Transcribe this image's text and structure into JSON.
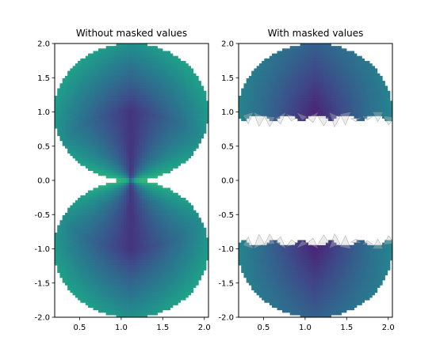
{
  "chart_data": [
    {
      "type": "heatmap",
      "title": "Without masked values",
      "xlabel": "",
      "ylabel": "",
      "xlim": [
        0.2,
        2.05
      ],
      "ylim": [
        -2.0,
        2.0
      ],
      "xticks": [
        "0.5",
        "1.0",
        "1.5",
        "2.0"
      ],
      "xtick_values": [
        0.5,
        1.0,
        1.5,
        2.0
      ],
      "yticks": [
        "2.0",
        "1.5",
        "1.0",
        "0.5",
        "0.0",
        "-0.5",
        "-1.0",
        "-1.5",
        "-2.0"
      ],
      "ytick_values": [
        2.0,
        1.5,
        1.0,
        0.5,
        0.0,
        -0.5,
        -1.0,
        -1.5,
        -2.0
      ],
      "colormap": "viridis",
      "grid": false,
      "field": {
        "description_shape": "two lobes touching at the origin",
        "center_x": 1.12,
        "lobe_radius_x": 0.93,
        "lobe_radius_y": 1.0,
        "lobe_center_y": [
          1.0,
          -1.0
        ]
      },
      "masked": false
    },
    {
      "type": "heatmap",
      "title": "With masked values",
      "xlabel": "",
      "ylabel": "",
      "xlim": [
        0.2,
        2.05
      ],
      "ylim": [
        -2.0,
        2.0
      ],
      "xticks": [
        "0.5",
        "1.0",
        "1.5",
        "2.0"
      ],
      "xtick_values": [
        0.5,
        1.0,
        1.5,
        2.0
      ],
      "yticks": [
        "2.0",
        "1.5",
        "1.0",
        "0.5",
        "0.0",
        "-0.5",
        "-1.0",
        "-1.5",
        "-2.0"
      ],
      "ytick_values": [
        2.0,
        1.5,
        1.0,
        0.5,
        0.0,
        -0.5,
        -1.0,
        -1.5,
        -2.0
      ],
      "colormap": "viridis",
      "grid": false,
      "field": {
        "center_x": 1.12,
        "lobe_radius_x": 0.93,
        "lobe_radius_y": 1.0,
        "lobe_center_y": [
          1.0,
          -1.0
        ]
      },
      "masked": true,
      "mask_band_y": [
        -0.95,
        0.95
      ]
    }
  ]
}
